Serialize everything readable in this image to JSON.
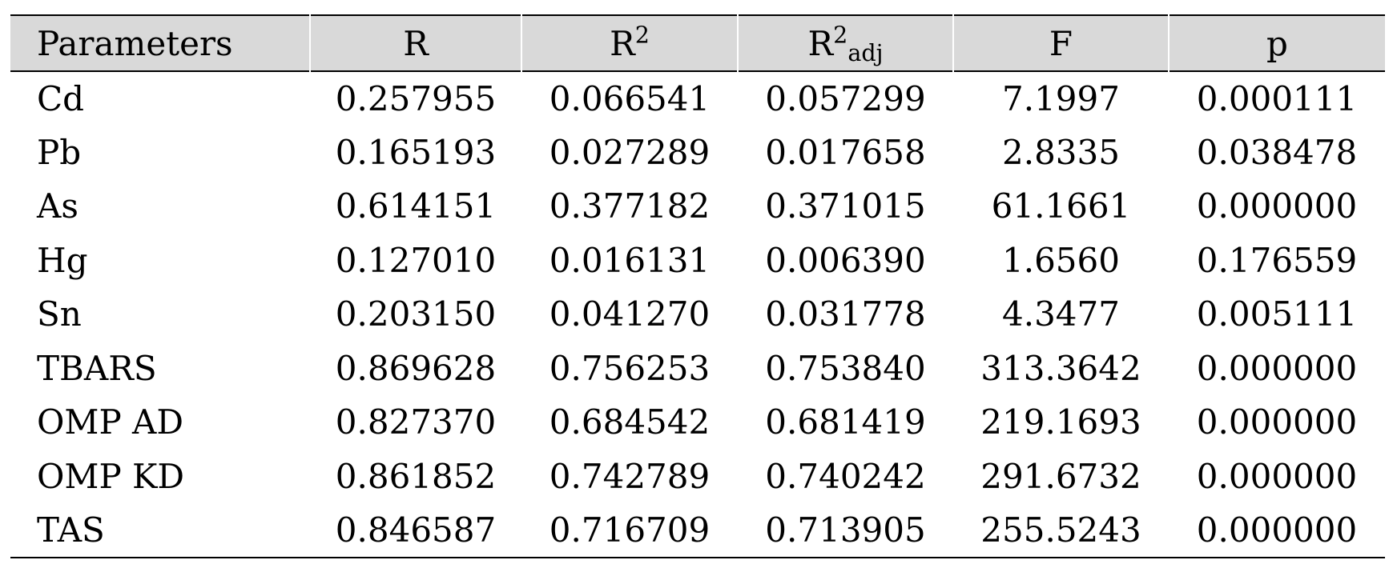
{
  "table": {
    "header": [
      {
        "text": "Parameters"
      },
      {
        "text": "R"
      },
      {
        "text": "R",
        "sup": "2"
      },
      {
        "text": "R",
        "sup": "2",
        "sub": "adj"
      },
      {
        "text": "F"
      },
      {
        "text": "p"
      }
    ],
    "rows": [
      [
        "Cd",
        "0.257955",
        "0.066541",
        "0.057299",
        "7.1997",
        "0.000111"
      ],
      [
        "Pb",
        "0.165193",
        "0.027289",
        "0.017658",
        "2.8335",
        "0.038478"
      ],
      [
        "As",
        "0.614151",
        "0.377182",
        "0.371015",
        "61.1661",
        "0.000000"
      ],
      [
        "Hg",
        "0.127010",
        "0.016131",
        "0.006390",
        "1.6560",
        "0.176559"
      ],
      [
        "Sn",
        "0.203150",
        "0.041270",
        "0.031778",
        "4.3477",
        "0.005111"
      ],
      [
        "TBARS",
        "0.869628",
        "0.756253",
        "0.753840",
        "313.3642",
        "0.000000"
      ],
      [
        "OMP AD",
        "0.827370",
        "0.684542",
        "0.681419",
        "219.1693",
        "0.000000"
      ],
      [
        "OMP KD",
        "0.861852",
        "0.742789",
        "0.740242",
        "291.6732",
        "0.000000"
      ],
      [
        "TAS",
        "0.846587",
        "0.716709",
        "0.713905",
        "255.5243",
        "0.000000"
      ]
    ]
  }
}
